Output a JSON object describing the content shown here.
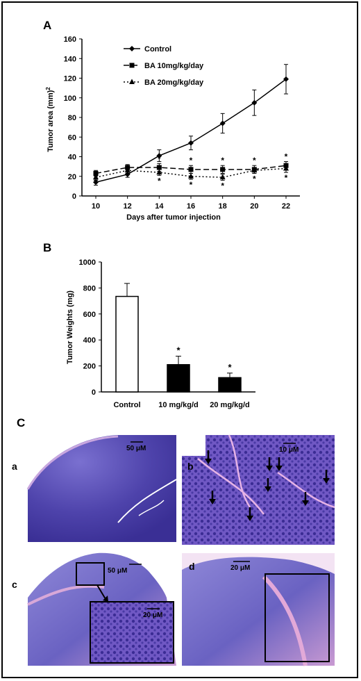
{
  "panels": {
    "A": "A",
    "B": "B",
    "C": "C"
  },
  "chart_data": [
    {
      "type": "line",
      "panel": "A",
      "ylabel": "Tumor area (mm)",
      "ylabel_superscript": "2",
      "xlabel": "Days after tumor injection",
      "x": [
        10,
        12,
        14,
        16,
        18,
        20,
        22
      ],
      "ylim": [
        0,
        160
      ],
      "yticks": [
        0,
        20,
        40,
        60,
        80,
        100,
        120,
        140,
        160
      ],
      "grid": false,
      "legend_position": "top-left",
      "series": [
        {
          "name": "Control",
          "marker": "diamond",
          "dash": "solid",
          "values": [
            14,
            22,
            41,
            54,
            74,
            95,
            119
          ],
          "errors": [
            3,
            3,
            6,
            7,
            10,
            13,
            15
          ]
        },
        {
          "name": "BA 10mg/kg/day",
          "marker": "square",
          "dash": "dashed",
          "values": [
            23,
            29,
            29,
            27,
            27,
            27,
            31
          ],
          "errors": [
            3,
            3,
            4,
            4,
            4,
            4,
            4
          ]
        },
        {
          "name": "BA 20mg/kg/day",
          "marker": "triangle",
          "dash": "dotted",
          "values": [
            19,
            26,
            24,
            20,
            19,
            26,
            28
          ],
          "errors": [
            3,
            3,
            3,
            3,
            3,
            3,
            4
          ]
        }
      ],
      "significance_marks": [
        "*",
        "*",
        "*",
        "*",
        "*",
        "*",
        "*",
        "*",
        "*",
        "*"
      ]
    },
    {
      "type": "bar",
      "panel": "B",
      "ylabel": "Tumor Weights (mg)",
      "categories": [
        "Control",
        "10 mg/kg/d",
        "20 mg/kg/d"
      ],
      "values": [
        735,
        210,
        110
      ],
      "errors": [
        100,
        65,
        35
      ],
      "fills": [
        "#ffffff",
        "#000000",
        "#000000"
      ],
      "significance": [
        "",
        "*",
        "*"
      ],
      "ylim": [
        0,
        1000
      ],
      "yticks": [
        0,
        200,
        400,
        600,
        800,
        1000
      ],
      "grid": false
    }
  ],
  "micrographs": [
    {
      "label": "a",
      "scale": "50 μM"
    },
    {
      "label": "b",
      "scale": "10 μM"
    },
    {
      "label": "c",
      "scale": "50 μM",
      "inset_scale": "20 μM"
    },
    {
      "label": "d",
      "scale": "20 μM"
    }
  ],
  "colors": {
    "tissue_purple": "#5a4fb5",
    "tissue_pink": "#d6a0d6",
    "arrow": "#000000"
  }
}
